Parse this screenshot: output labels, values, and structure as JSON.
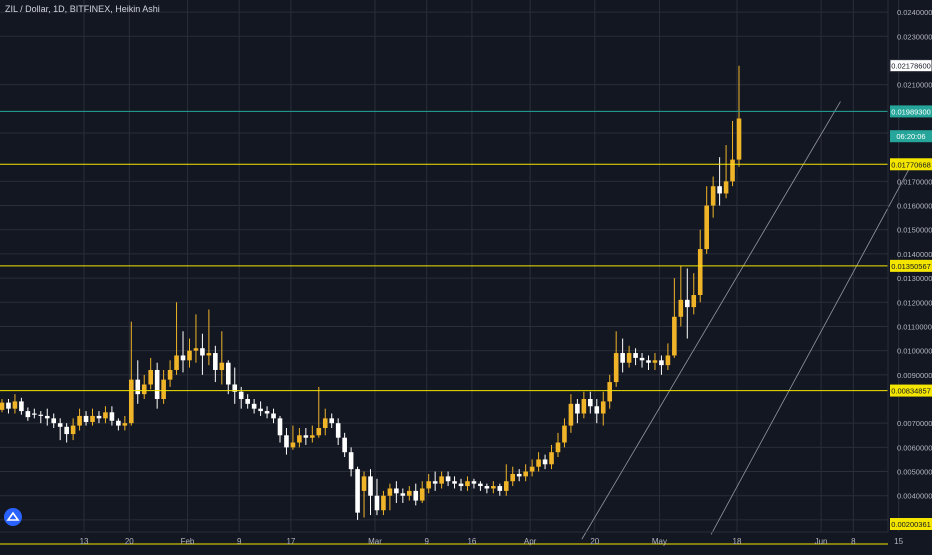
{
  "header": {
    "symbol_line": "ZIL / Dollar, 1D, BITFINEX, Heikin Ashi"
  },
  "colors": {
    "background": "#131722",
    "grid": "#2a2e39",
    "axis_text": "#b2b5be",
    "bull": "#f0b429",
    "bear": "#ffffff",
    "level": "#f5e600",
    "channel": "#9598a1",
    "price_badge": "#26a69a",
    "badge_text": "#131722",
    "dark_badge": "#26a69a"
  },
  "chart_data": {
    "type": "candlestick",
    "ylim": [
      0.0025,
      0.0245
    ],
    "y_ticks": [
      {
        "value": 0.003,
        "label": "0.00300000"
      },
      {
        "value": 0.004,
        "label": "0.00400000"
      },
      {
        "value": 0.005,
        "label": "0.00500000"
      },
      {
        "value": 0.006,
        "label": "0.00600000"
      },
      {
        "value": 0.007,
        "label": "0.00700000"
      },
      {
        "value": 0.009,
        "label": "0.00900000"
      },
      {
        "value": 0.01,
        "label": "0.01000000"
      },
      {
        "value": 0.011,
        "label": "0.01100000"
      },
      {
        "value": 0.012,
        "label": "0.01200000"
      },
      {
        "value": 0.013,
        "label": "0.01300000"
      },
      {
        "value": 0.014,
        "label": "0.01400000"
      },
      {
        "value": 0.015,
        "label": "0.01500000"
      },
      {
        "value": 0.016,
        "label": "0.01600000"
      },
      {
        "value": 0.017,
        "label": "0.01700000"
      },
      {
        "value": 0.019,
        "label": "0.01900000"
      },
      {
        "value": 0.021,
        "label": "0.02100000"
      },
      {
        "value": 0.023,
        "label": "0.02300000"
      },
      {
        "value": 0.024,
        "label": "0.02400000"
      }
    ],
    "x_ticks": [
      {
        "day": 13,
        "label": "13"
      },
      {
        "day": 20,
        "label": "20"
      },
      {
        "day": 29,
        "label": "Feb"
      },
      {
        "day": 37,
        "label": "9"
      },
      {
        "day": 45,
        "label": "17"
      },
      {
        "day": 58,
        "label": "Mar"
      },
      {
        "day": 66,
        "label": "9"
      },
      {
        "day": 73,
        "label": "16"
      },
      {
        "day": 82,
        "label": "Apr"
      },
      {
        "day": 92,
        "label": "20"
      },
      {
        "day": 102,
        "label": "May"
      },
      {
        "day": 114,
        "label": "18"
      },
      {
        "day": 127,
        "label": "Jun"
      },
      {
        "day": 132,
        "label": "8"
      },
      {
        "day": 139,
        "label": "15"
      }
    ],
    "levels": [
      {
        "value": 0.021786,
        "label": "0.02178600",
        "style": "white-badge",
        "line": false
      },
      {
        "value": 0.019893,
        "label": "0.01989300",
        "style": "green-badge",
        "line": true,
        "line_color": "#26a69a"
      },
      {
        "value": 0.0177067,
        "label": "0.01770668",
        "style": "yellow-badge",
        "line": true
      },
      {
        "value": 0.0135057,
        "label": "0.01350567",
        "style": "yellow-badge",
        "line": true
      },
      {
        "value": 0.0083486,
        "label": "0.00834857",
        "style": "yellow-badge",
        "line": true
      },
      {
        "value": 0.0020036,
        "label": "0.00200361",
        "style": "yellow-badge",
        "line": true
      }
    ],
    "countdown": {
      "value": 0.01895,
      "label": "06:20:06"
    },
    "channel": [
      {
        "x1": 90,
        "y1": 0.0022,
        "x2": 130,
        "y2": 0.0203
      },
      {
        "x1": 110,
        "y1": 0.0024,
        "x2": 141,
        "y2": 0.0177
      }
    ],
    "candles": [
      {
        "o": 0.00755,
        "c": 0.00785,
        "h": 0.008,
        "l": 0.00745
      },
      {
        "o": 0.00785,
        "c": 0.0076,
        "h": 0.008,
        "l": 0.0074
      },
      {
        "o": 0.0076,
        "c": 0.0079,
        "h": 0.0082,
        "l": 0.0074
      },
      {
        "o": 0.0079,
        "c": 0.0075,
        "h": 0.00805,
        "l": 0.00735
      },
      {
        "o": 0.0075,
        "c": 0.00725,
        "h": 0.00765,
        "l": 0.0071
      },
      {
        "o": 0.0074,
        "c": 0.00735,
        "h": 0.0076,
        "l": 0.0072
      },
      {
        "o": 0.00735,
        "c": 0.0073,
        "h": 0.0075,
        "l": 0.007
      },
      {
        "o": 0.0073,
        "c": 0.0072,
        "h": 0.0076,
        "l": 0.0069
      },
      {
        "o": 0.0072,
        "c": 0.007,
        "h": 0.0074,
        "l": 0.0068
      },
      {
        "o": 0.007,
        "c": 0.00685,
        "h": 0.0072,
        "l": 0.0063
      },
      {
        "o": 0.00685,
        "c": 0.00655,
        "h": 0.007,
        "l": 0.0062
      },
      {
        "o": 0.00655,
        "c": 0.0069,
        "h": 0.0072,
        "l": 0.0063
      },
      {
        "o": 0.0069,
        "c": 0.0073,
        "h": 0.0076,
        "l": 0.0067
      },
      {
        "o": 0.0073,
        "c": 0.00705,
        "h": 0.0075,
        "l": 0.0069
      },
      {
        "o": 0.00705,
        "c": 0.0073,
        "h": 0.0076,
        "l": 0.0069
      },
      {
        "o": 0.0073,
        "c": 0.0072,
        "h": 0.0075,
        "l": 0.007
      },
      {
        "o": 0.0072,
        "c": 0.00745,
        "h": 0.0077,
        "l": 0.007
      },
      {
        "o": 0.00745,
        "c": 0.0071,
        "h": 0.0077,
        "l": 0.0069
      },
      {
        "o": 0.0071,
        "c": 0.0069,
        "h": 0.0072,
        "l": 0.0067
      },
      {
        "o": 0.0069,
        "c": 0.007,
        "h": 0.0073,
        "l": 0.0067
      },
      {
        "o": 0.007,
        "c": 0.0088,
        "h": 0.0112,
        "l": 0.0069
      },
      {
        "o": 0.0088,
        "c": 0.0082,
        "h": 0.0096,
        "l": 0.0078
      },
      {
        "o": 0.0082,
        "c": 0.0086,
        "h": 0.009,
        "l": 0.008
      },
      {
        "o": 0.0086,
        "c": 0.0092,
        "h": 0.0097,
        "l": 0.0084
      },
      {
        "o": 0.0092,
        "c": 0.008,
        "h": 0.0095,
        "l": 0.0076
      },
      {
        "o": 0.008,
        "c": 0.0088,
        "h": 0.0092,
        "l": 0.0078
      },
      {
        "o": 0.0088,
        "c": 0.0092,
        "h": 0.0096,
        "l": 0.0085
      },
      {
        "o": 0.0092,
        "c": 0.0098,
        "h": 0.012,
        "l": 0.009
      },
      {
        "o": 0.0098,
        "c": 0.0096,
        "h": 0.0108,
        "l": 0.0091
      },
      {
        "o": 0.0096,
        "c": 0.01,
        "h": 0.0105,
        "l": 0.0093
      },
      {
        "o": 0.01,
        "c": 0.0101,
        "h": 0.0115,
        "l": 0.0095
      },
      {
        "o": 0.0101,
        "c": 0.0098,
        "h": 0.0107,
        "l": 0.009
      },
      {
        "o": 0.0098,
        "c": 0.0099,
        "h": 0.0117,
        "l": 0.0094
      },
      {
        "o": 0.0099,
        "c": 0.0092,
        "h": 0.0102,
        "l": 0.0087
      },
      {
        "o": 0.0092,
        "c": 0.0095,
        "h": 0.0108,
        "l": 0.0086
      },
      {
        "o": 0.0095,
        "c": 0.0086,
        "h": 0.0096,
        "l": 0.0082
      },
      {
        "o": 0.0086,
        "c": 0.0083,
        "h": 0.0093,
        "l": 0.0078
      },
      {
        "o": 0.0083,
        "c": 0.008,
        "h": 0.0085,
        "l": 0.0076
      },
      {
        "o": 0.008,
        "c": 0.0078,
        "h": 0.0082,
        "l": 0.0076
      },
      {
        "o": 0.0078,
        "c": 0.0076,
        "h": 0.008,
        "l": 0.0074
      },
      {
        "o": 0.0076,
        "c": 0.0075,
        "h": 0.0079,
        "l": 0.0073
      },
      {
        "o": 0.0075,
        "c": 0.0074,
        "h": 0.0077,
        "l": 0.0072
      },
      {
        "o": 0.0074,
        "c": 0.0072,
        "h": 0.0076,
        "l": 0.007
      },
      {
        "o": 0.0072,
        "c": 0.0065,
        "h": 0.0073,
        "l": 0.0062
      },
      {
        "o": 0.0065,
        "c": 0.006,
        "h": 0.0068,
        "l": 0.0057
      },
      {
        "o": 0.006,
        "c": 0.0062,
        "h": 0.0069,
        "l": 0.0059
      },
      {
        "o": 0.0062,
        "c": 0.0065,
        "h": 0.0068,
        "l": 0.006
      },
      {
        "o": 0.0065,
        "c": 0.0064,
        "h": 0.0068,
        "l": 0.0061
      },
      {
        "o": 0.0064,
        "c": 0.0065,
        "h": 0.0069,
        "l": 0.0062
      },
      {
        "o": 0.0065,
        "c": 0.0068,
        "h": 0.0085,
        "l": 0.0064
      },
      {
        "o": 0.0068,
        "c": 0.0072,
        "h": 0.0076,
        "l": 0.0065
      },
      {
        "o": 0.0072,
        "c": 0.007,
        "h": 0.0074,
        "l": 0.0068
      },
      {
        "o": 0.007,
        "c": 0.0064,
        "h": 0.0072,
        "l": 0.0061
      },
      {
        "o": 0.0064,
        "c": 0.0058,
        "h": 0.0066,
        "l": 0.0056
      },
      {
        "o": 0.0058,
        "c": 0.0051,
        "h": 0.006,
        "l": 0.0048
      },
      {
        "o": 0.0051,
        "c": 0.0033,
        "h": 0.0052,
        "l": 0.003
      },
      {
        "o": 0.0042,
        "c": 0.0048,
        "h": 0.005,
        "l": 0.0031
      },
      {
        "o": 0.0048,
        "c": 0.004,
        "h": 0.0051,
        "l": 0.0032
      },
      {
        "o": 0.004,
        "c": 0.0034,
        "h": 0.0047,
        "l": 0.0032
      },
      {
        "o": 0.0034,
        "c": 0.004,
        "h": 0.0042,
        "l": 0.0032
      },
      {
        "o": 0.004,
        "c": 0.0043,
        "h": 0.0045,
        "l": 0.0034
      },
      {
        "o": 0.0043,
        "c": 0.0041,
        "h": 0.0046,
        "l": 0.0037
      },
      {
        "o": 0.0041,
        "c": 0.004,
        "h": 0.0043,
        "l": 0.0037
      },
      {
        "o": 0.004,
        "c": 0.0042,
        "h": 0.0044,
        "l": 0.0038
      },
      {
        "o": 0.0042,
        "c": 0.0038,
        "h": 0.0045,
        "l": 0.0036
      },
      {
        "o": 0.0038,
        "c": 0.0043,
        "h": 0.0046,
        "l": 0.0037
      },
      {
        "o": 0.0043,
        "c": 0.0046,
        "h": 0.0049,
        "l": 0.0041
      },
      {
        "o": 0.0046,
        "c": 0.0045,
        "h": 0.005,
        "l": 0.0042
      },
      {
        "o": 0.0045,
        "c": 0.0048,
        "h": 0.005,
        "l": 0.0043
      },
      {
        "o": 0.0048,
        "c": 0.0046,
        "h": 0.005,
        "l": 0.0044
      },
      {
        "o": 0.0046,
        "c": 0.0045,
        "h": 0.0048,
        "l": 0.0043
      },
      {
        "o": 0.0045,
        "c": 0.0044,
        "h": 0.0047,
        "l": 0.0042
      },
      {
        "o": 0.0044,
        "c": 0.0046,
        "h": 0.0048,
        "l": 0.0042
      },
      {
        "o": 0.0046,
        "c": 0.0045,
        "h": 0.0047,
        "l": 0.0043
      },
      {
        "o": 0.0045,
        "c": 0.0044,
        "h": 0.0046,
        "l": 0.0042
      },
      {
        "o": 0.0044,
        "c": 0.0043,
        "h": 0.0045,
        "l": 0.0041
      },
      {
        "o": 0.0043,
        "c": 0.0044,
        "h": 0.0046,
        "l": 0.0041
      },
      {
        "o": 0.0044,
        "c": 0.0042,
        "h": 0.0045,
        "l": 0.004
      },
      {
        "o": 0.0042,
        "c": 0.0046,
        "h": 0.0053,
        "l": 0.004
      },
      {
        "o": 0.0046,
        "c": 0.0049,
        "h": 0.0052,
        "l": 0.0044
      },
      {
        "o": 0.0049,
        "c": 0.0048,
        "h": 0.0051,
        "l": 0.0046
      },
      {
        "o": 0.0048,
        "c": 0.005,
        "h": 0.0053,
        "l": 0.0046
      },
      {
        "o": 0.005,
        "c": 0.0052,
        "h": 0.0055,
        "l": 0.0048
      },
      {
        "o": 0.0052,
        "c": 0.0055,
        "h": 0.0058,
        "l": 0.005
      },
      {
        "o": 0.0055,
        "c": 0.0053,
        "h": 0.0057,
        "l": 0.0051
      },
      {
        "o": 0.0053,
        "c": 0.0058,
        "h": 0.0061,
        "l": 0.0051
      },
      {
        "o": 0.0058,
        "c": 0.0062,
        "h": 0.0066,
        "l": 0.0056
      },
      {
        "o": 0.0062,
        "c": 0.0069,
        "h": 0.0072,
        "l": 0.006
      },
      {
        "o": 0.0069,
        "c": 0.0078,
        "h": 0.0082,
        "l": 0.0066
      },
      {
        "o": 0.0078,
        "c": 0.0074,
        "h": 0.008,
        "l": 0.007
      },
      {
        "o": 0.0074,
        "c": 0.008,
        "h": 0.0083,
        "l": 0.0072
      },
      {
        "o": 0.008,
        "c": 0.0077,
        "h": 0.0083,
        "l": 0.0074
      },
      {
        "o": 0.0077,
        "c": 0.0074,
        "h": 0.008,
        "l": 0.007
      },
      {
        "o": 0.0074,
        "c": 0.0079,
        "h": 0.0083,
        "l": 0.0069
      },
      {
        "o": 0.0079,
        "c": 0.0087,
        "h": 0.009,
        "l": 0.0076
      },
      {
        "o": 0.0087,
        "c": 0.0099,
        "h": 0.0108,
        "l": 0.0085
      },
      {
        "o": 0.0099,
        "c": 0.0095,
        "h": 0.0105,
        "l": 0.0091
      },
      {
        "o": 0.0095,
        "c": 0.0099,
        "h": 0.0102,
        "l": 0.0093
      },
      {
        "o": 0.0099,
        "c": 0.0097,
        "h": 0.0101,
        "l": 0.0094
      },
      {
        "o": 0.0097,
        "c": 0.0096,
        "h": 0.0099,
        "l": 0.0093
      },
      {
        "o": 0.0096,
        "c": 0.0095,
        "h": 0.0098,
        "l": 0.0092
      },
      {
        "o": 0.0095,
        "c": 0.0096,
        "h": 0.0099,
        "l": 0.0092
      },
      {
        "o": 0.0096,
        "c": 0.0094,
        "h": 0.0098,
        "l": 0.009
      },
      {
        "o": 0.0094,
        "c": 0.0098,
        "h": 0.0103,
        "l": 0.0092
      },
      {
        "o": 0.0098,
        "c": 0.0114,
        "h": 0.013,
        "l": 0.0097
      },
      {
        "o": 0.0114,
        "c": 0.0121,
        "h": 0.0135,
        "l": 0.011
      },
      {
        "o": 0.0121,
        "c": 0.0118,
        "h": 0.0134,
        "l": 0.0105
      },
      {
        "o": 0.0118,
        "c": 0.0123,
        "h": 0.0132,
        "l": 0.0115
      },
      {
        "o": 0.0123,
        "c": 0.0142,
        "h": 0.015,
        "l": 0.012
      },
      {
        "o": 0.0142,
        "c": 0.016,
        "h": 0.0168,
        "l": 0.014
      },
      {
        "o": 0.016,
        "c": 0.0168,
        "h": 0.0172,
        "l": 0.0155
      },
      {
        "o": 0.0168,
        "c": 0.0165,
        "h": 0.018,
        "l": 0.016
      },
      {
        "o": 0.0165,
        "c": 0.017,
        "h": 0.0185,
        "l": 0.0163
      },
      {
        "o": 0.017,
        "c": 0.0179,
        "h": 0.0195,
        "l": 0.0168
      },
      {
        "o": 0.0179,
        "c": 0.0196,
        "h": 0.02178,
        "l": 0.0176
      }
    ]
  }
}
